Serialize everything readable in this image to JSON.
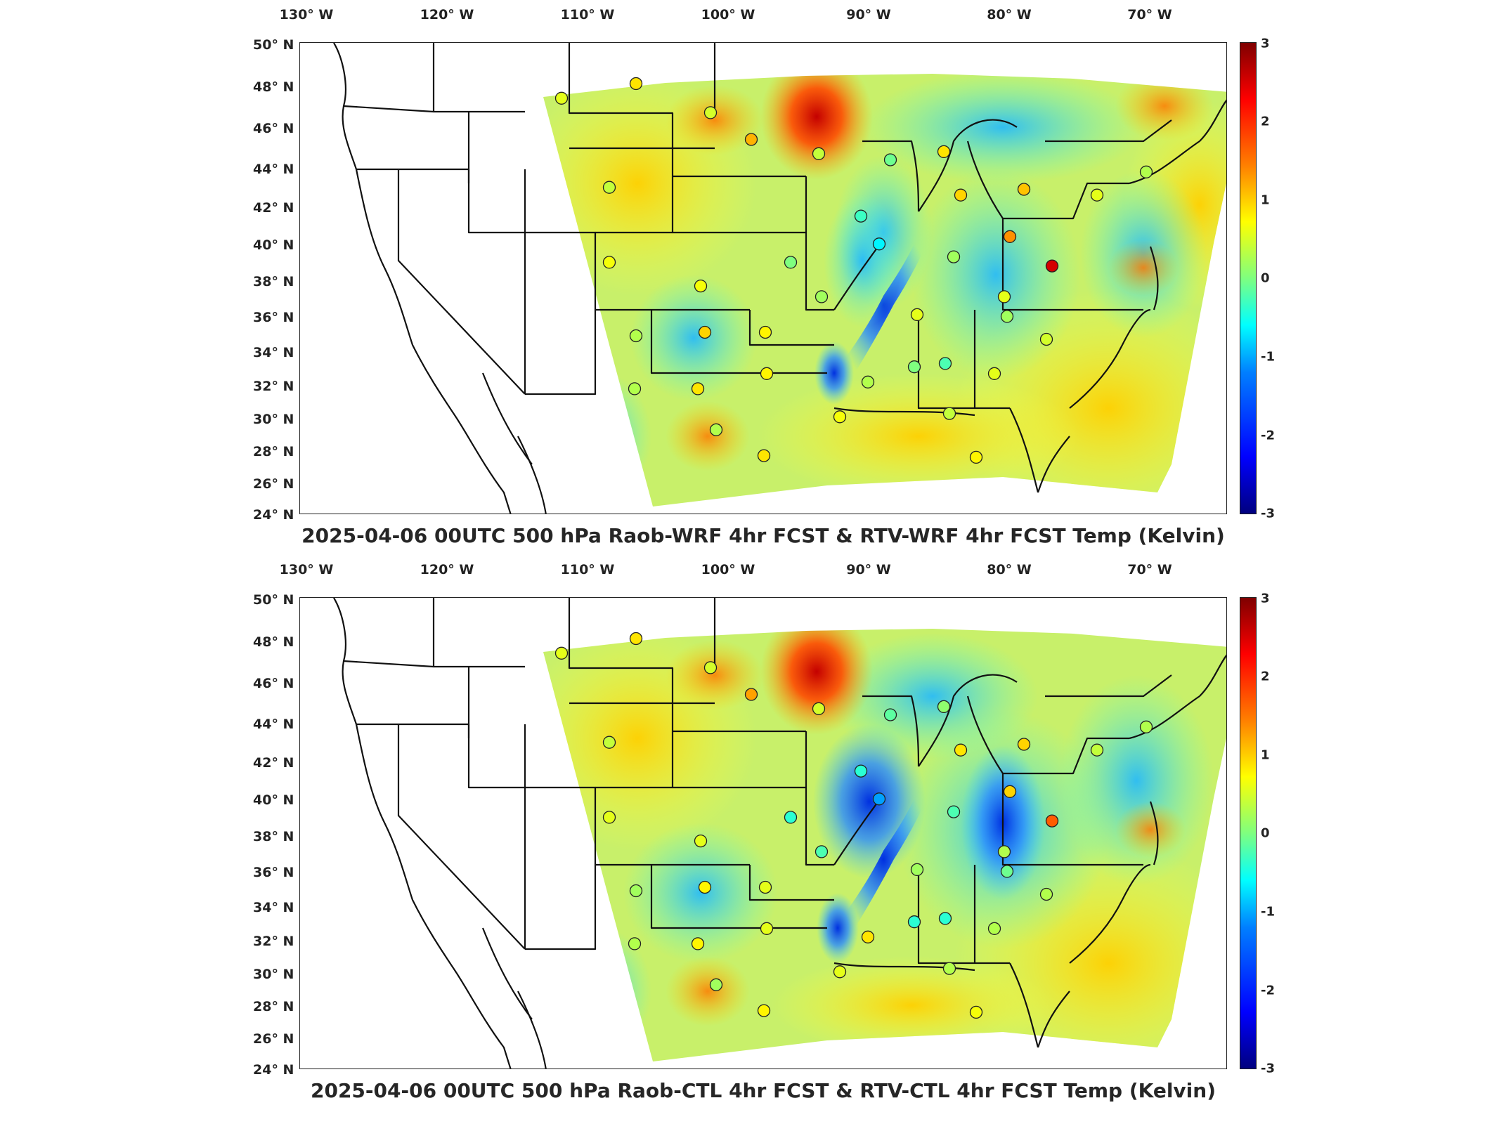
{
  "colors": {
    "colormap": [
      "#00007f",
      "#0000ff",
      "#007fff",
      "#00ffff",
      "#7fff7f",
      "#ffff00",
      "#ff7f00",
      "#ff0000",
      "#7f0000"
    ],
    "land_outline": "#111111",
    "no_data": "#ffffff"
  },
  "lon_labels": [
    "130° W",
    "120° W",
    "110° W",
    "100° W",
    "90° W",
    "80° W",
    "70° W"
  ],
  "lat_labels": [
    "50° N",
    "48° N",
    "46° N",
    "44° N",
    "42° N",
    "40° N",
    "38° N",
    "36° N",
    "34° N",
    "32° N",
    "30° N",
    "28° N",
    "26° N",
    "24° N"
  ],
  "colorbar_ticks": [
    "3",
    "2",
    "1",
    "0",
    "-1",
    "-2",
    "-3"
  ],
  "colorbar_range": [
    -3,
    3
  ],
  "panels": [
    {
      "title": "2025-04-06 00UTC 500 hPa Raob-WRF 4hr FCST & RTV-WRF 4hr FCST Temp (Kelvin)",
      "stations": [
        {
          "lon": -111.9,
          "lat": 47.5,
          "value": 0.6
        },
        {
          "lon": -106.6,
          "lat": 48.2,
          "value": 0.9
        },
        {
          "lon": -101.3,
          "lat": 46.8,
          "value": 0.5
        },
        {
          "lon": -98.4,
          "lat": 45.5,
          "value": 1.2
        },
        {
          "lon": -93.6,
          "lat": 44.8,
          "value": 0.4
        },
        {
          "lon": -108.5,
          "lat": 43.1,
          "value": 0.4
        },
        {
          "lon": -88.5,
          "lat": 44.5,
          "value": -0.1
        },
        {
          "lon": -84.7,
          "lat": 44.9,
          "value": 0.9
        },
        {
          "lon": -83.5,
          "lat": 42.7,
          "value": 1.0
        },
        {
          "lon": -79.0,
          "lat": 43.0,
          "value": 1.1
        },
        {
          "lon": -73.8,
          "lat": 42.7,
          "value": 0.6
        },
        {
          "lon": -70.3,
          "lat": 43.9,
          "value": 0.3
        },
        {
          "lon": -90.6,
          "lat": 41.6,
          "value": -0.4
        },
        {
          "lon": -89.3,
          "lat": 40.1,
          "value": -0.8
        },
        {
          "lon": -80.0,
          "lat": 40.5,
          "value": 1.4
        },
        {
          "lon": -77.0,
          "lat": 38.9,
          "value": 2.5
        },
        {
          "lon": -84.0,
          "lat": 39.4,
          "value": 0.2
        },
        {
          "lon": -95.6,
          "lat": 39.1,
          "value": 0.0
        },
        {
          "lon": -102.0,
          "lat": 37.8,
          "value": 0.7
        },
        {
          "lon": -108.5,
          "lat": 39.1,
          "value": 0.7
        },
        {
          "lon": -93.4,
          "lat": 37.2,
          "value": 0.2
        },
        {
          "lon": -86.6,
          "lat": 36.2,
          "value": 0.6
        },
        {
          "lon": -80.4,
          "lat": 37.2,
          "value": 0.6
        },
        {
          "lon": -80.2,
          "lat": 36.1,
          "value": 0.2
        },
        {
          "lon": -106.6,
          "lat": 35.0,
          "value": 0.3
        },
        {
          "lon": -101.7,
          "lat": 35.2,
          "value": 1.0
        },
        {
          "lon": -97.4,
          "lat": 35.2,
          "value": 0.8
        },
        {
          "lon": -77.4,
          "lat": 34.8,
          "value": 0.5
        },
        {
          "lon": -97.3,
          "lat": 32.8,
          "value": 0.8
        },
        {
          "lon": -106.7,
          "lat": 31.9,
          "value": 0.3
        },
        {
          "lon": -102.2,
          "lat": 31.9,
          "value": 0.9
        },
        {
          "lon": -90.1,
          "lat": 32.3,
          "value": 0.3
        },
        {
          "lon": -86.8,
          "lat": 33.2,
          "value": 0.0
        },
        {
          "lon": -84.6,
          "lat": 33.4,
          "value": -0.3
        },
        {
          "lon": -81.1,
          "lat": 32.8,
          "value": 0.6
        },
        {
          "lon": -92.1,
          "lat": 30.2,
          "value": 0.7
        },
        {
          "lon": -84.3,
          "lat": 30.4,
          "value": 0.4
        },
        {
          "lon": -100.9,
          "lat": 29.4,
          "value": 0.3
        },
        {
          "lon": -97.5,
          "lat": 27.8,
          "value": 0.9
        },
        {
          "lon": -82.4,
          "lat": 27.7,
          "value": 0.8
        }
      ]
    },
    {
      "title": "2025-04-06 00UTC 500 hPa Raob-CTL 4hr FCST & RTV-CTL 4hr FCST Temp (Kelvin)",
      "stations": [
        {
          "lon": -111.9,
          "lat": 47.5,
          "value": 0.6
        },
        {
          "lon": -106.6,
          "lat": 48.2,
          "value": 0.9
        },
        {
          "lon": -101.3,
          "lat": 46.8,
          "value": 0.5
        },
        {
          "lon": -98.4,
          "lat": 45.5,
          "value": 1.3
        },
        {
          "lon": -93.6,
          "lat": 44.8,
          "value": 0.5
        },
        {
          "lon": -108.5,
          "lat": 43.1,
          "value": 0.4
        },
        {
          "lon": -88.5,
          "lat": 44.5,
          "value": -0.2
        },
        {
          "lon": -84.7,
          "lat": 44.9,
          "value": 0.1
        },
        {
          "lon": -83.5,
          "lat": 42.7,
          "value": 0.9
        },
        {
          "lon": -79.0,
          "lat": 43.0,
          "value": 1.0
        },
        {
          "lon": -73.8,
          "lat": 42.7,
          "value": 0.4
        },
        {
          "lon": -70.3,
          "lat": 43.9,
          "value": 0.3
        },
        {
          "lon": -90.6,
          "lat": 41.6,
          "value": -0.5
        },
        {
          "lon": -89.3,
          "lat": 40.1,
          "value": -1.3
        },
        {
          "lon": -80.0,
          "lat": 40.5,
          "value": 1.0
        },
        {
          "lon": -77.0,
          "lat": 38.9,
          "value": 1.7
        },
        {
          "lon": -84.0,
          "lat": 39.4,
          "value": -0.3
        },
        {
          "lon": -95.6,
          "lat": 39.1,
          "value": -0.5
        },
        {
          "lon": -102.0,
          "lat": 37.8,
          "value": 0.6
        },
        {
          "lon": -108.5,
          "lat": 39.1,
          "value": 0.6
        },
        {
          "lon": -93.4,
          "lat": 37.2,
          "value": -0.3
        },
        {
          "lon": -86.6,
          "lat": 36.2,
          "value": 0.2
        },
        {
          "lon": -80.4,
          "lat": 37.2,
          "value": 0.3
        },
        {
          "lon": -80.2,
          "lat": 36.1,
          "value": -0.1
        },
        {
          "lon": -106.6,
          "lat": 35.0,
          "value": 0.2
        },
        {
          "lon": -101.7,
          "lat": 35.2,
          "value": 0.8
        },
        {
          "lon": -97.4,
          "lat": 35.2,
          "value": 0.6
        },
        {
          "lon": -77.4,
          "lat": 34.8,
          "value": 0.3
        },
        {
          "lon": -97.3,
          "lat": 32.8,
          "value": 0.6
        },
        {
          "lon": -106.7,
          "lat": 31.9,
          "value": 0.3
        },
        {
          "lon": -102.2,
          "lat": 31.9,
          "value": 0.8
        },
        {
          "lon": -90.1,
          "lat": 32.3,
          "value": 0.9
        },
        {
          "lon": -86.8,
          "lat": 33.2,
          "value": -0.5
        },
        {
          "lon": -84.6,
          "lat": 33.4,
          "value": -0.5
        },
        {
          "lon": -81.1,
          "lat": 32.8,
          "value": 0.3
        },
        {
          "lon": -92.1,
          "lat": 30.2,
          "value": 0.6
        },
        {
          "lon": -84.3,
          "lat": 30.4,
          "value": 0.3
        },
        {
          "lon": -100.9,
          "lat": 29.4,
          "value": 0.2
        },
        {
          "lon": -97.5,
          "lat": 27.8,
          "value": 0.8
        },
        {
          "lon": -82.4,
          "lat": 27.7,
          "value": 0.7
        }
      ]
    }
  ]
}
